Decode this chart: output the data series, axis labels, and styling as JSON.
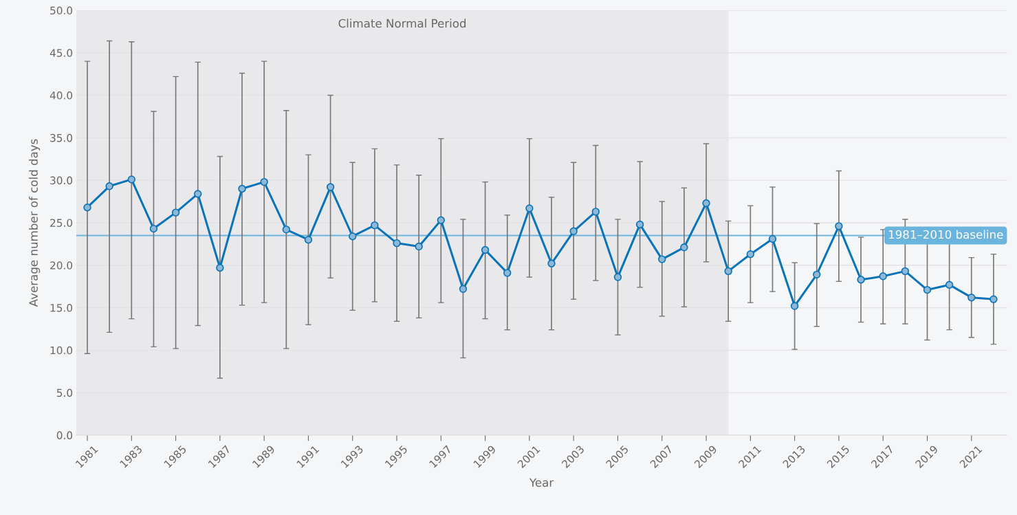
{
  "chart_data": {
    "type": "line",
    "xlabel": "Year",
    "ylabel": "Average number of cold days",
    "x": [
      1981,
      1982,
      1983,
      1984,
      1985,
      1986,
      1987,
      1988,
      1989,
      1990,
      1991,
      1992,
      1993,
      1994,
      1995,
      1996,
      1997,
      1998,
      1999,
      2000,
      2001,
      2002,
      2003,
      2004,
      2005,
      2006,
      2007,
      2008,
      2009,
      2010,
      2011,
      2012,
      2013,
      2014,
      2015,
      2016,
      2017,
      2018,
      2019,
      2020,
      2021,
      2022
    ],
    "series": [
      {
        "color": "#0b74b8",
        "values": [
          26.8,
          29.3,
          30.1,
          24.3,
          26.2,
          28.4,
          19.7,
          29.0,
          29.8,
          24.2,
          23.0,
          29.2,
          23.4,
          24.7,
          22.6,
          22.2,
          25.3,
          17.2,
          21.8,
          19.1,
          26.7,
          20.2,
          24.0,
          26.3,
          18.6,
          24.8,
          20.7,
          22.1,
          27.3,
          19.3,
          21.3,
          23.1,
          15.2,
          18.9,
          24.6,
          18.3,
          18.7,
          19.3,
          17.1,
          17.7,
          16.2,
          16.0
        ],
        "errors": [
          [
            9.6,
            44.0
          ],
          [
            12.1,
            46.4
          ],
          [
            13.7,
            46.3
          ],
          [
            10.4,
            38.1
          ],
          [
            10.2,
            42.2
          ],
          [
            12.9,
            43.9
          ],
          [
            6.7,
            32.8
          ],
          [
            15.3,
            42.6
          ],
          [
            15.6,
            44.0
          ],
          [
            10.2,
            38.2
          ],
          [
            13.0,
            33.0
          ],
          [
            18.5,
            40.0
          ],
          [
            14.7,
            32.1
          ],
          [
            15.7,
            33.7
          ],
          [
            13.4,
            31.8
          ],
          [
            13.8,
            30.6
          ],
          [
            15.6,
            34.9
          ],
          [
            9.1,
            25.4
          ],
          [
            13.7,
            29.8
          ],
          [
            12.4,
            25.9
          ],
          [
            18.6,
            34.9
          ],
          [
            12.4,
            28.0
          ],
          [
            16.0,
            32.1
          ],
          [
            18.2,
            34.1
          ],
          [
            11.8,
            25.4
          ],
          [
            17.4,
            32.2
          ],
          [
            14.0,
            27.5
          ],
          [
            15.1,
            29.1
          ],
          [
            20.4,
            34.3
          ],
          [
            13.4,
            25.2
          ],
          [
            15.6,
            27.0
          ],
          [
            16.9,
            29.2
          ],
          [
            10.1,
            20.3
          ],
          [
            12.8,
            24.9
          ],
          [
            18.1,
            31.1
          ],
          [
            13.3,
            23.3
          ],
          [
            13.1,
            24.2
          ],
          [
            13.1,
            25.4
          ],
          [
            11.2,
            23.0
          ],
          [
            12.4,
            22.9
          ],
          [
            11.5,
            20.9
          ],
          [
            10.7,
            21.3
          ]
        ]
      }
    ],
    "marker": "circle",
    "line_style": "solid",
    "grid": "y",
    "xlim": [
      1980.5,
      2022.6
    ],
    "xticks": [
      1981,
      1983,
      1985,
      1987,
      1989,
      1991,
      1993,
      1995,
      1997,
      1999,
      2001,
      2003,
      2005,
      2007,
      2009,
      2011,
      2013,
      2015,
      2017,
      2019,
      2021
    ],
    "ylim": [
      0,
      50
    ],
    "yticks": [
      {
        "value": 0,
        "label": "0.0"
      },
      {
        "value": 5,
        "label": "5.0"
      },
      {
        "value": 10,
        "label": "10.0"
      },
      {
        "value": 15,
        "label": "15.0"
      },
      {
        "value": 20,
        "label": "20.0"
      },
      {
        "value": 25,
        "label": "25.0"
      },
      {
        "value": 30,
        "label": "30.0"
      },
      {
        "value": 35,
        "label": "35.0"
      },
      {
        "value": 40,
        "label": "40.0"
      },
      {
        "value": 45,
        "label": "45.0"
      },
      {
        "value": 50,
        "label": "50.0"
      }
    ],
    "ref_lines": [
      {
        "axis": "y",
        "value": 23.5,
        "label": "1981–2010 baseline",
        "color": "#6ab4de"
      }
    ],
    "bands": [
      {
        "axis": "x",
        "from": 1980.5,
        "to": 2010,
        "label": "Climate Normal Period",
        "color": "#e9e9ec"
      }
    ]
  }
}
